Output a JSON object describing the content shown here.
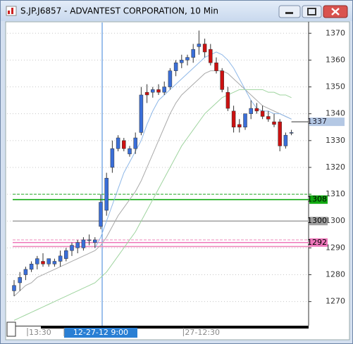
{
  "window_title": "S.JP.J6857 - ADVANTEST CORPORATION, 10 Min",
  "chart_data": {
    "type": "candlestick",
    "categories": [
      null,
      null,
      null,
      null,
      null,
      "13:30",
      null,
      null,
      null,
      null,
      null,
      null,
      null,
      null,
      null,
      "12-27-12 9:00",
      null,
      null,
      null,
      null,
      null,
      null,
      null,
      null,
      null,
      null,
      null,
      null,
      null,
      null,
      null,
      null,
      "27-12:30",
      null,
      null,
      null,
      null,
      null,
      null,
      null,
      null,
      null,
      null,
      null,
      null,
      null,
      null,
      null,
      null
    ],
    "highlight_category": 15,
    "open": [
      1274,
      1277,
      1280,
      1282,
      1284,
      1285,
      1284,
      1284,
      1285,
      1286,
      1289,
      1290,
      1290,
      1293,
      1292,
      1298,
      1304,
      1320,
      1327,
      1330,
      1325,
      1327,
      1333,
      1348,
      1348,
      1349,
      1348,
      1350,
      1356,
      1359,
      1360,
      1361,
      1365,
      1366,
      1364,
      1359,
      1356,
      1348,
      1341,
      1336,
      1335,
      1340,
      1342,
      1341,
      1339,
      1337,
      1337,
      1328,
      1333
    ],
    "high": [
      1278,
      1281,
      1283,
      1285,
      1287,
      1288,
      1286,
      1286,
      1289,
      1290,
      1292,
      1293,
      1294,
      1295,
      1294,
      1310,
      1318,
      1330,
      1332,
      1331,
      1328,
      1333,
      1350,
      1351,
      1350,
      1351,
      1352,
      1357,
      1360,
      1362,
      1362,
      1366,
      1371,
      1368,
      1366,
      1361,
      1357,
      1350,
      1343,
      1338,
      1340,
      1345,
      1344,
      1343,
      1341,
      1340,
      1338,
      1333,
      1334
    ],
    "low": [
      1272,
      1274,
      1278,
      1281,
      1282,
      1283,
      1283,
      1283,
      1283,
      1285,
      1287,
      1288,
      1289,
      1291,
      1290,
      1297,
      1302,
      1318,
      1326,
      1326,
      1324,
      1325,
      1332,
      1344,
      1346,
      1347,
      1347,
      1349,
      1354,
      1357,
      1358,
      1359,
      1362,
      1361,
      1358,
      1355,
      1348,
      1341,
      1333,
      1333,
      1334,
      1338,
      1340,
      1338,
      1337,
      1335,
      1326,
      1327,
      1332
    ],
    "close": [
      1276,
      1279,
      1282,
      1284,
      1286,
      1284,
      1286,
      1285,
      1287,
      1289,
      1291,
      1292,
      1293,
      1293,
      1293,
      1307,
      1316,
      1327,
      1331,
      1327,
      1327,
      1331,
      1347,
      1347,
      1349,
      1348,
      1350,
      1356,
      1359,
      1360,
      1361,
      1364,
      1366,
      1363,
      1359,
      1356,
      1349,
      1342,
      1335,
      1335,
      1340,
      1342,
      1341,
      1339,
      1338,
      1336,
      1328,
      1332,
      1333
    ],
    "up_color": "#3a6ed8",
    "down_color": "#cc1111",
    "lines": [
      {
        "color": "#a9a9a9",
        "values": [
          1272,
          1274,
          1276,
          1277,
          1279,
          1280,
          1281,
          1282,
          1283,
          1284,
          1285,
          1286,
          1287,
          1288,
          1289,
          1291,
          1294,
          1298,
          1302,
          1305,
          1308,
          1311,
          1315,
          1320,
          1325,
          1330,
          1335,
          1340,
          1344,
          1347,
          1349,
          1351,
          1353,
          1355,
          1356,
          1356,
          1356,
          1355,
          1353,
          1351,
          1349,
          1347,
          1345,
          1343,
          1342,
          1341,
          1340,
          1339,
          1338
        ]
      },
      {
        "color": "#8fb8e8",
        "values": [
          null,
          null,
          null,
          null,
          null,
          null,
          null,
          null,
          null,
          null,
          null,
          null,
          null,
          null,
          1290,
          1294,
          1300,
          1306,
          1312,
          1318,
          1322,
          1326,
          1330,
          1336,
          1341,
          1345,
          1347,
          1349,
          1351,
          1353,
          1355,
          1357,
          1359,
          1361,
          1362,
          1363,
          1362,
          1360,
          1357,
          1353,
          1349,
          1345,
          1342,
          1341,
          1341,
          1340,
          1340,
          1339,
          1338
        ]
      },
      {
        "color": "#9fd49f",
        "values": [
          1263,
          1264,
          1265,
          1266,
          1267,
          1268,
          1269,
          1270,
          1271,
          1272,
          1273,
          1274,
          1275,
          1276,
          1277,
          1279,
          1281,
          1284,
          1287,
          1290,
          1293,
          1296,
          1300,
          1304,
          1308,
          1312,
          1316,
          1320,
          1324,
          1328,
          1331,
          1334,
          1337,
          1340,
          1342,
          1344,
          1346,
          1347,
          1348,
          1349,
          1349,
          1349,
          1349,
          1349,
          1348,
          1348,
          1347,
          1347,
          1346
        ]
      }
    ],
    "levels": [
      {
        "value": 1310,
        "color": "#22aa22",
        "dash": true,
        "show_label": false
      },
      {
        "value": 1308,
        "color": "#11aa11",
        "dash": false,
        "show_label": true
      },
      {
        "value": 1300,
        "color": "#a0a0a0",
        "dash": false,
        "show_label": true
      },
      {
        "value": 1293,
        "color": "#ee88bb",
        "dash": true,
        "show_label": false
      },
      {
        "value": 1292,
        "color": "#ee77bb",
        "dash": false,
        "show_label": true
      },
      {
        "value": 1290.5,
        "color": "#ee88bb",
        "dash": false,
        "show_label": false
      }
    ],
    "current": {
      "value": 1337,
      "color": "#b4c8e4"
    },
    "ylim": [
      1261,
      1374
    ],
    "yticks": [
      1270,
      1280,
      1290,
      1300,
      1310,
      1320,
      1330,
      1340,
      1350,
      1360,
      1370
    ],
    "grid": true
  }
}
